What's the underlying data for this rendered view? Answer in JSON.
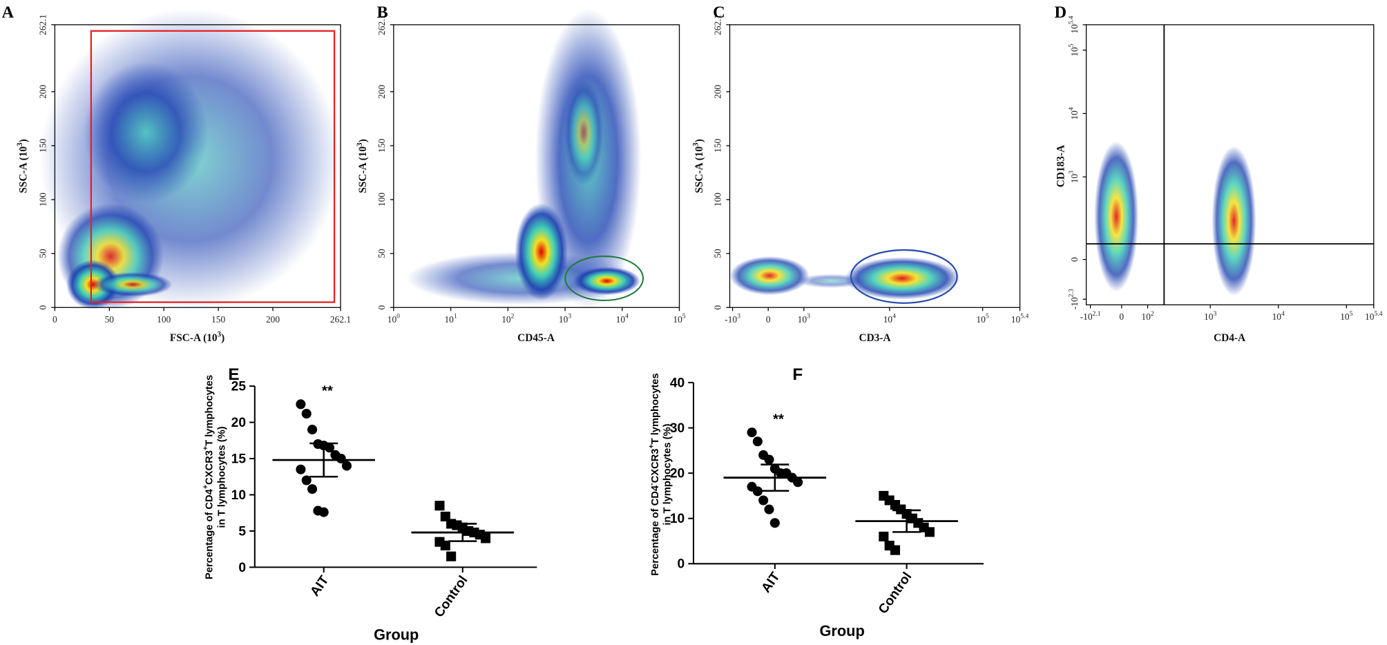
{
  "chart_data": [
    {
      "type": "flow-density",
      "panel": "A",
      "xlabel": [
        {
          "t": "FSC-A  (10"
        },
        {
          "s": "3"
        },
        {
          "t": ")"
        }
      ],
      "ylabel": [
        {
          "t": "SSC-A  (10"
        },
        {
          "s": "3"
        },
        {
          "t": ")"
        }
      ],
      "xlim": [
        0,
        262.1
      ],
      "ylim": [
        0,
        262.1
      ],
      "xticks": [
        0,
        50,
        100,
        150,
        200,
        262.1
      ],
      "yticks": [
        0,
        50,
        100,
        150,
        200,
        262.1
      ]
    },
    {
      "type": "flow-density",
      "panel": "B",
      "xlabel": "CD45-A",
      "ylabel": [
        {
          "t": "SSC-A  (10"
        },
        {
          "s": "3"
        },
        {
          "t": ")"
        }
      ],
      "xscale": "log",
      "xlim": [
        1,
        100000
      ],
      "ylim": [
        0,
        262.1
      ],
      "xticks": [
        {
          "value": 1,
          "label": [
            {
              "t": "10"
            },
            {
              "s": "0"
            }
          ]
        },
        {
          "value": 10,
          "label": [
            {
              "t": "10"
            },
            {
              "s": "1"
            }
          ]
        },
        {
          "value": 100,
          "label": [
            {
              "t": "10"
            },
            {
              "s": "2"
            }
          ]
        },
        {
          "value": 1000,
          "label": [
            {
              "t": "10"
            },
            {
              "s": "3"
            }
          ]
        },
        {
          "value": 10000,
          "label": [
            {
              "t": "10"
            },
            {
              "s": "4"
            }
          ]
        },
        {
          "value": 100000,
          "label": [
            {
              "t": "10"
            },
            {
              "s": "5"
            }
          ]
        }
      ],
      "yticks": [
        0,
        50,
        100,
        150,
        200,
        262.1
      ]
    },
    {
      "type": "flow-density",
      "panel": "C",
      "xlabel": "CD3-A",
      "ylabel": [
        {
          "t": "SSC-A  (10"
        },
        {
          "s": "3"
        },
        {
          "t": ")"
        }
      ],
      "xscale": "asinh",
      "xscale_width": 1000,
      "xlim": [
        -1100,
        251189
      ],
      "ylim": [
        0,
        262.1
      ],
      "xticks": [
        {
          "value": -1000,
          "label": [
            {
              "t": "-10"
            },
            {
              "s": "3"
            }
          ]
        },
        0,
        {
          "value": 1000,
          "label": [
            {
              "t": "10"
            },
            {
              "s": "3"
            }
          ]
        },
        {
          "value": 10000,
          "label": [
            {
              "t": "10"
            },
            {
              "s": "4"
            }
          ]
        },
        {
          "value": 100000,
          "label": [
            {
              "t": "10"
            },
            {
              "s": "5"
            }
          ]
        },
        {
          "value": 251189,
          "label": [
            {
              "t": "10"
            },
            {
              "s": "5.4"
            }
          ]
        }
      ],
      "yticks": [
        0,
        50,
        100,
        150,
        200,
        262.1
      ]
    },
    {
      "type": "flow-density",
      "panel": "D",
      "xlabel": "CD4-A",
      "ylabel": "CD183-A",
      "xscale": "asinh",
      "xscale_width": 100,
      "yscale": "asinh",
      "yscale_width": 100,
      "xlim": [
        -150,
        251189
      ],
      "ylim": [
        -250,
        251189
      ],
      "xticks": [
        {
          "value": -126,
          "label": [
            {
              "t": "-10"
            },
            {
              "s": "2.1"
            }
          ]
        },
        0,
        {
          "value": 100,
          "label": [
            {
              "t": "10"
            },
            {
              "s": "2"
            }
          ]
        },
        {
          "value": 1000,
          "label": [
            {
              "t": "10"
            },
            {
              "s": "3"
            }
          ]
        },
        {
          "value": 10000,
          "label": [
            {
              "t": "10"
            },
            {
              "s": "4"
            }
          ]
        },
        {
          "value": 100000,
          "label": [
            {
              "t": "10"
            },
            {
              "s": "5"
            }
          ]
        },
        {
          "value": 251189,
          "label": [
            {
              "t": "10"
            },
            {
              "s": "5.4"
            }
          ]
        }
      ],
      "yticks": [
        {
          "value": -200,
          "label": [
            {
              "t": "-10"
            },
            {
              "s": "2.3"
            }
          ]
        },
        0,
        {
          "value": 1000,
          "label": [
            {
              "t": "10"
            },
            {
              "s": "3"
            }
          ]
        },
        {
          "value": 10000,
          "label": [
            {
              "t": "10"
            },
            {
              "s": "4"
            }
          ]
        },
        {
          "value": 100000,
          "label": [
            {
              "t": "10"
            },
            {
              "s": "5"
            }
          ]
        },
        {
          "value": 251189,
          "label": [
            {
              "t": "10"
            },
            {
              "s": "5.4"
            }
          ]
        }
      ]
    },
    {
      "type": "dot-plot",
      "panel": "E",
      "ylabel": [
        [
          {
            "t": "Percentage of CD4"
          },
          {
            "s": "+"
          },
          {
            "t": "CXCR3"
          },
          {
            "s": "+"
          },
          {
            "t": "T lymphocytes"
          }
        ],
        [
          {
            "t": "in T lymphocytes (%)"
          }
        ]
      ],
      "xlabel": "Group",
      "categories": [
        "AIT",
        "Control"
      ],
      "color": "#000000",
      "ylim": [
        0,
        25
      ],
      "yticks": [
        0,
        5,
        10,
        15,
        20,
        25
      ],
      "groups": [
        {
          "marker": "circle",
          "values": [
            22.5,
            21.2,
            19.0,
            17.0,
            16.8,
            16.5,
            15.5,
            15.0,
            14.0,
            13.5,
            12.0,
            10.8,
            7.8,
            7.6
          ],
          "mean": 14.8,
          "error": 2.3,
          "annotation": "**"
        },
        {
          "marker": "square",
          "values": [
            8.5,
            7.0,
            6.0,
            5.8,
            5.5,
            5.0,
            4.8,
            4.5,
            4.0,
            3.5,
            3.0,
            1.5
          ],
          "mean": 4.8,
          "error": 1.2
        }
      ]
    },
    {
      "type": "dot-plot",
      "panel": "F",
      "ylabel": [
        [
          {
            "t": "Percentage of CD4"
          },
          {
            "s": "-"
          },
          {
            "t": "CXCR3"
          },
          {
            "s": "+"
          },
          {
            "t": "T lymphocytes"
          }
        ],
        [
          {
            "t": "in T lymphocytes (%)"
          }
        ]
      ],
      "xlabel": "Group",
      "categories": [
        "AIT",
        "Control"
      ],
      "color": "#000000",
      "ylim": [
        0,
        40
      ],
      "yticks": [
        0,
        10,
        20,
        30,
        40
      ],
      "groups": [
        {
          "marker": "circle",
          "values": [
            29,
            27,
            24,
            23,
            21,
            20,
            20,
            19,
            18,
            17,
            16,
            14,
            12,
            9
          ],
          "mean": 19,
          "error": 2.9,
          "annotation": "**"
        },
        {
          "marker": "square",
          "values": [
            15,
            14,
            13,
            12,
            11,
            10,
            9,
            8,
            7,
            6,
            4,
            3
          ],
          "mean": 9.4,
          "error": 2.4
        }
      ]
    }
  ]
}
